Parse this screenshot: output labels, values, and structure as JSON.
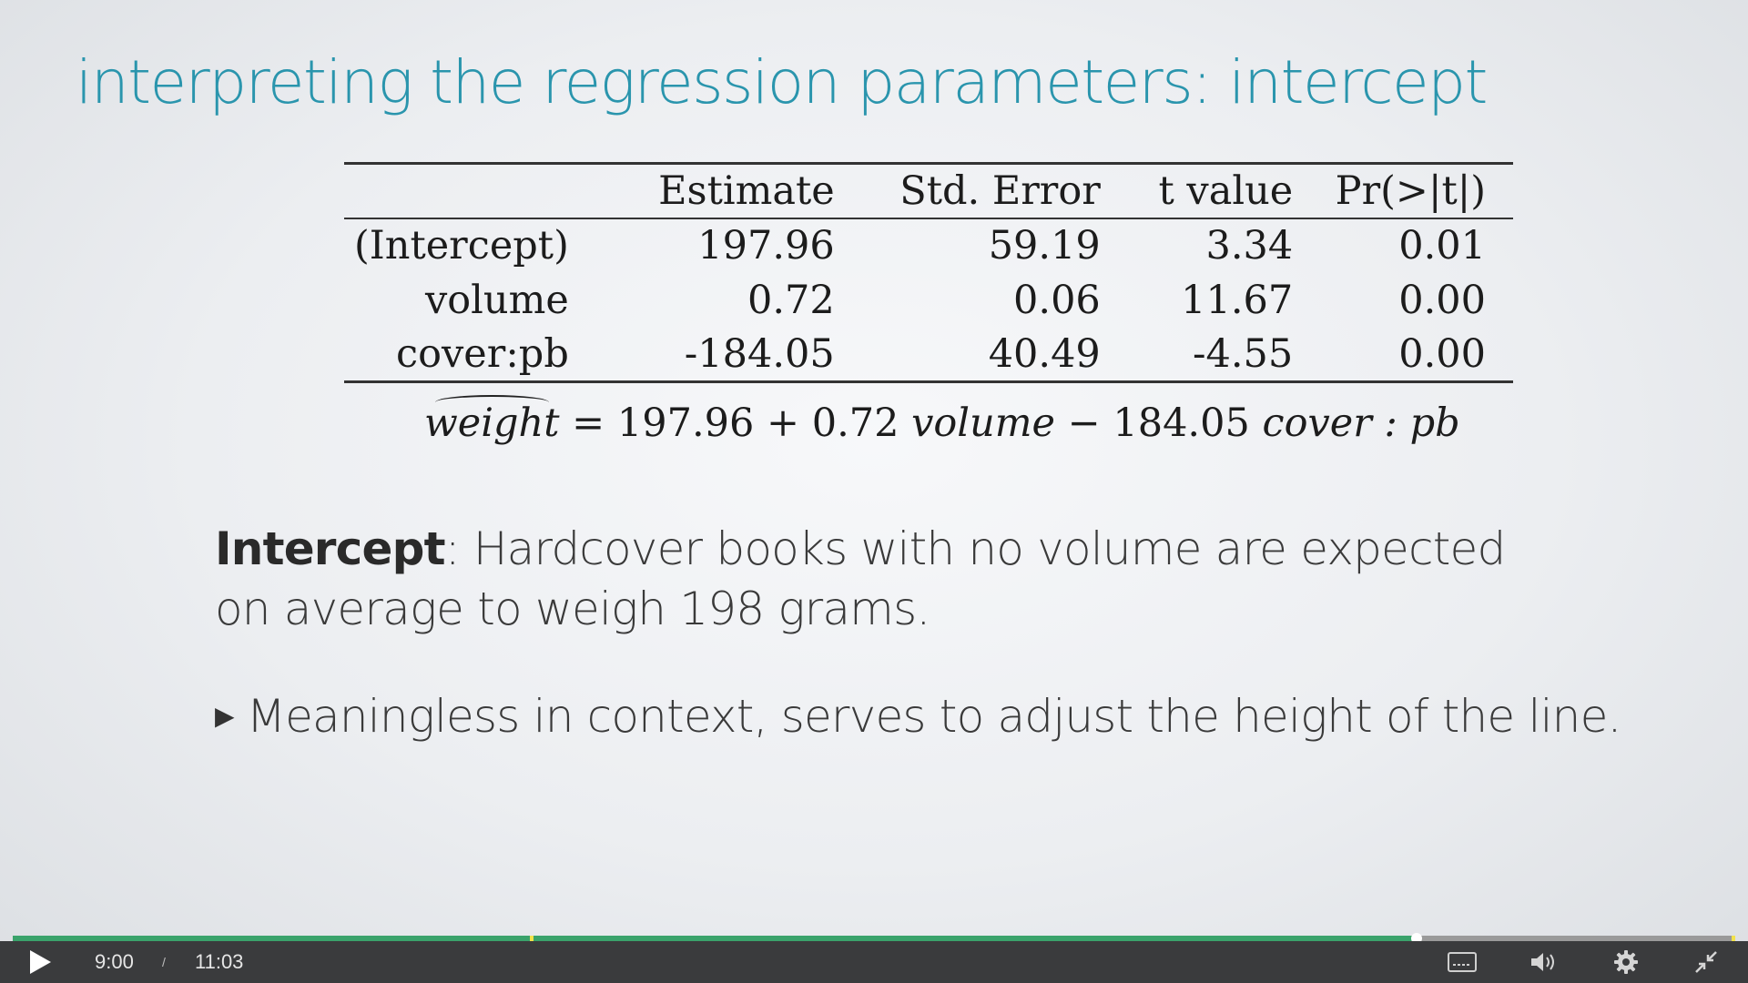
{
  "slide": {
    "title": "interpreting the regression parameters: intercept",
    "table": {
      "headers": [
        "",
        "Estimate",
        "Std. Error",
        "t value",
        "Pr(>|t|)"
      ],
      "rows": [
        [
          "(Intercept)",
          "197.96",
          "59.19",
          "3.34",
          "0.01"
        ],
        [
          "volume",
          "0.72",
          "0.06",
          "11.67",
          "0.00"
        ],
        [
          "cover:pb",
          "-184.05",
          "40.49",
          "-4.55",
          "0.00"
        ]
      ]
    },
    "equation": {
      "lhs": "weight",
      "equals": " = 197.96 + 0.72 ",
      "term1": "volume",
      "minus": " − 184.05 ",
      "term2": "cover : pb"
    },
    "intercept_label": "Intercept",
    "intercept_body": ": Hardcover books with no volume are expected on average to weigh 198 grams.",
    "bullet": "Meaningless in context, serves to adjust the height of the line."
  },
  "player": {
    "current_time": "9:00",
    "separator": "/",
    "duration": "11:03",
    "progress_fraction": 0.815,
    "chapter_marker_fraction": 0.3,
    "colors": {
      "played": "#3aa36b",
      "marker": "#f2e24a",
      "bar": "#3a3b3d"
    },
    "icons": [
      "play-icon",
      "captions-icon",
      "volume-icon",
      "settings-gear-icon",
      "exit-fullscreen-icon"
    ]
  }
}
